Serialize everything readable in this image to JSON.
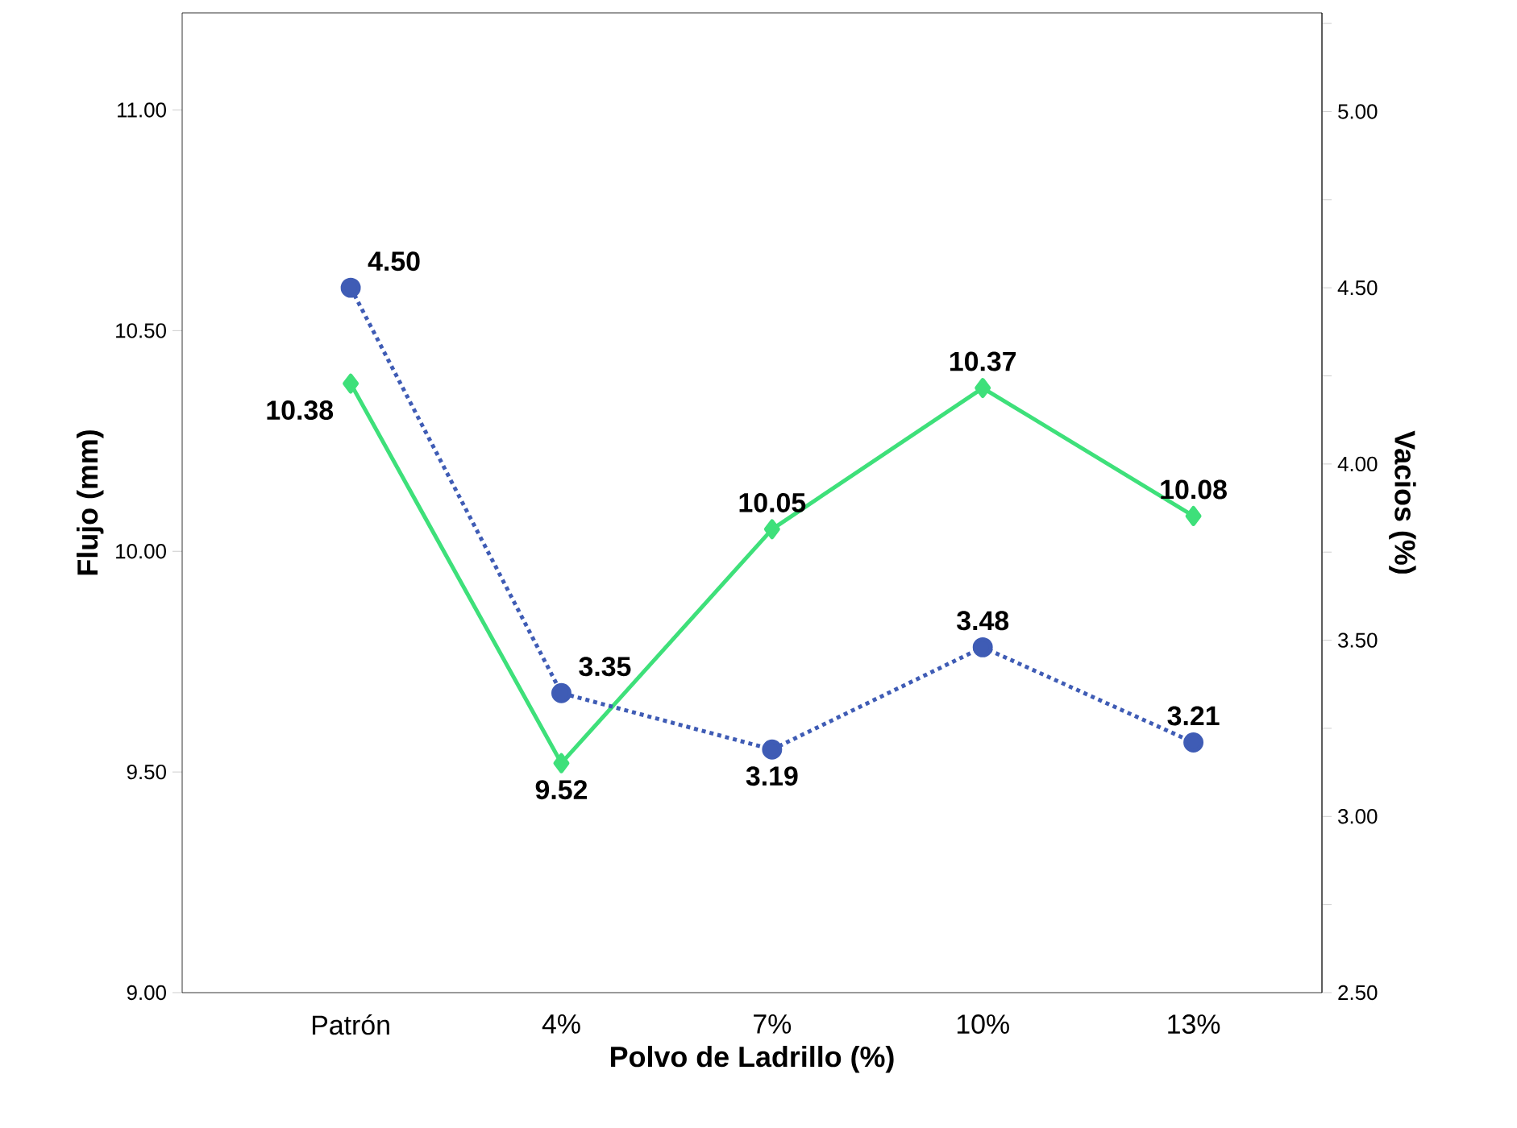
{
  "chart_data": {
    "type": "line",
    "xlabel": "Polvo de Ladrillo (%)",
    "ylabel": "Flujo (mm)",
    "y2label": "Vacios (%)",
    "categories": [
      "Patrón",
      "4%",
      "7%",
      "10%",
      "13%"
    ],
    "ylim": [
      9.0,
      11.22
    ],
    "yticks": [
      {
        "value": 9.0,
        "label": "9.00"
      },
      {
        "value": 9.5,
        "label": "9.50"
      },
      {
        "value": 10.0,
        "label": "10.00"
      },
      {
        "value": 10.5,
        "label": "10.50"
      },
      {
        "value": 11.0,
        "label": "11.00"
      }
    ],
    "y2lim": [
      2.5,
      5.28
    ],
    "y2ticks": [
      {
        "value": 2.5,
        "label": "2.50"
      },
      {
        "value": 2.75,
        "label": null
      },
      {
        "value": 3.0,
        "label": "3.00"
      },
      {
        "value": 3.25,
        "label": null
      },
      {
        "value": 3.5,
        "label": "3.50"
      },
      {
        "value": 3.75,
        "label": null
      },
      {
        "value": 4.0,
        "label": "4.00"
      },
      {
        "value": 4.25,
        "label": null
      },
      {
        "value": 4.5,
        "label": "4.50"
      },
      {
        "value": 4.75,
        "label": null
      },
      {
        "value": 5.0,
        "label": "5.00"
      },
      {
        "value": 5.25,
        "label": null
      }
    ],
    "series": [
      {
        "color": "#3ee07a",
        "marker": "diamond",
        "line_style": "solid",
        "values": [
          10.38,
          9.52,
          10.05,
          10.37,
          10.08
        ],
        "value_labels": [
          "10.38",
          "9.52",
          "10.05",
          "10.37",
          "10.08"
        ]
      },
      {
        "color": "#3f5cb5",
        "marker": "circle",
        "line_style": "dotted",
        "axis": "y2",
        "values": [
          4.5,
          3.35,
          3.19,
          3.48,
          3.21
        ],
        "value_labels": [
          "4.50",
          "3.35",
          "3.19",
          "3.48",
          "3.21"
        ]
      }
    ]
  }
}
